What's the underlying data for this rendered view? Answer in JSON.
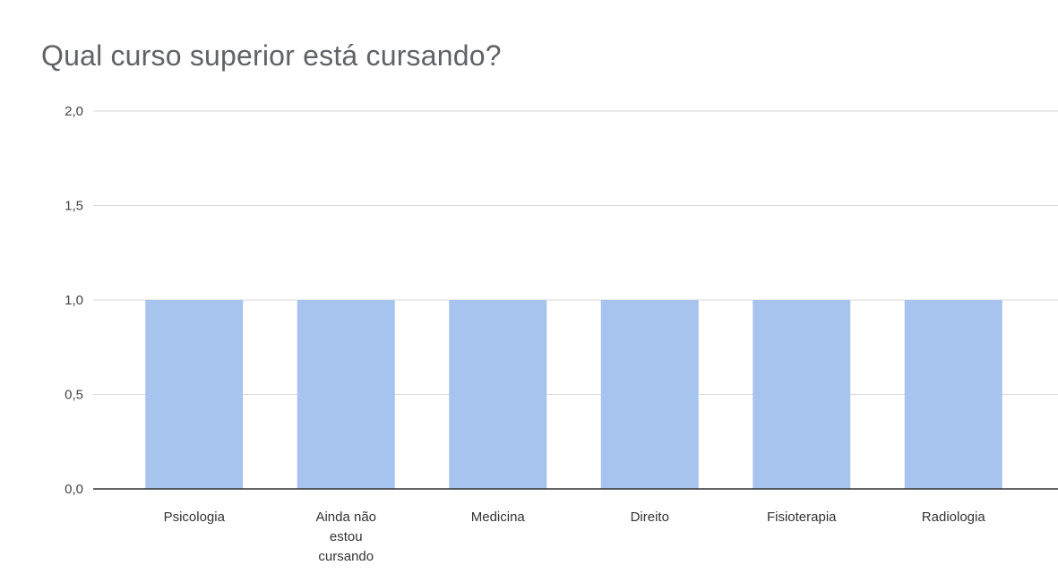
{
  "chart_data": {
    "type": "bar",
    "title": "Qual curso superior está cursando?",
    "categories": [
      "Psicologia",
      "Ainda não estou cursando",
      "Medicina",
      "Direito",
      "Fisioterapia",
      "Radiologia"
    ],
    "category_label_lines": [
      [
        "Psicologia"
      ],
      [
        "Ainda não",
        "estou",
        "cursando"
      ],
      [
        "Medicina"
      ],
      [
        "Direito"
      ],
      [
        "Fisioterapia"
      ],
      [
        "Radiologia"
      ]
    ],
    "values": [
      1,
      1,
      1,
      1,
      1,
      1
    ],
    "ylim": [
      0,
      2
    ],
    "yticks": [
      0,
      0.5,
      1,
      1.5,
      2
    ],
    "ytick_labels": [
      "0,0",
      "0,5",
      "1,0",
      "1,5",
      "2,0"
    ],
    "xlabel": "",
    "ylabel": "",
    "grid": true,
    "legend": "none",
    "bar_color": "#a7c4ef",
    "grid_color": "#d9d9d9",
    "axis_color": "#333333"
  }
}
